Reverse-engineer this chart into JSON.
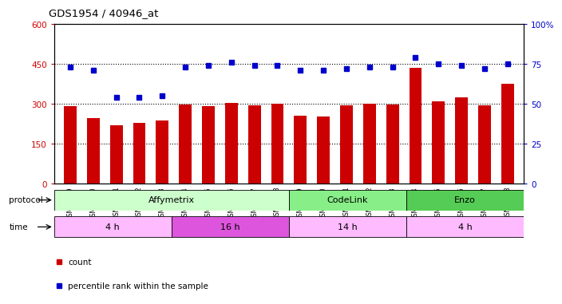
{
  "title": "GDS1954 / 40946_at",
  "samples": [
    "GSM73359",
    "GSM73360",
    "GSM73361",
    "GSM73362",
    "GSM73363",
    "GSM73344",
    "GSM73345",
    "GSM73346",
    "GSM73347",
    "GSM73348",
    "GSM73349",
    "GSM73350",
    "GSM73351",
    "GSM73352",
    "GSM73353",
    "GSM73354",
    "GSM73355",
    "GSM73356",
    "GSM73357",
    "GSM73358"
  ],
  "counts": [
    290,
    245,
    220,
    228,
    238,
    298,
    292,
    303,
    295,
    300,
    255,
    252,
    295,
    300,
    298,
    435,
    310,
    325,
    295,
    375
  ],
  "percentiles": [
    73,
    71,
    54,
    54,
    55,
    73,
    74,
    76,
    74,
    74,
    71,
    71,
    72,
    73,
    73,
    79,
    75,
    74,
    72,
    75
  ],
  "bar_color": "#cc0000",
  "dot_color": "#0000cc",
  "ylim_left": [
    0,
    600
  ],
  "ylim_right": [
    0,
    100
  ],
  "yticks_left": [
    0,
    150,
    300,
    450,
    600
  ],
  "yticks_right": [
    0,
    25,
    50,
    75,
    100
  ],
  "ytick_labels_left": [
    "0",
    "150",
    "300",
    "450",
    "600"
  ],
  "ytick_labels_right": [
    "0",
    "25",
    "50",
    "75",
    "100%"
  ],
  "hlines": [
    150,
    300,
    450
  ],
  "protocol_groups": [
    {
      "label": "Affymetrix",
      "start": 0,
      "end": 10,
      "color": "#ccffcc"
    },
    {
      "label": "CodeLink",
      "start": 10,
      "end": 15,
      "color": "#88ee88"
    },
    {
      "label": "Enzo",
      "start": 15,
      "end": 20,
      "color": "#55cc55"
    }
  ],
  "time_groups": [
    {
      "label": "4 h",
      "start": 0,
      "end": 5,
      "color": "#ffbbff"
    },
    {
      "label": "16 h",
      "start": 5,
      "end": 10,
      "color": "#dd55dd"
    },
    {
      "label": "14 h",
      "start": 10,
      "end": 15,
      "color": "#ffbbff"
    },
    {
      "label": "4 h",
      "start": 15,
      "end": 20,
      "color": "#ffbbff"
    }
  ],
  "legend_items": [
    {
      "label": "count",
      "color": "#cc0000"
    },
    {
      "label": "percentile rank within the sample",
      "color": "#0000cc"
    }
  ],
  "background_color": "#ffffff",
  "left_tick_color": "#cc0000",
  "right_tick_color": "#0000cc",
  "fig_width": 6.8,
  "fig_height": 3.75
}
